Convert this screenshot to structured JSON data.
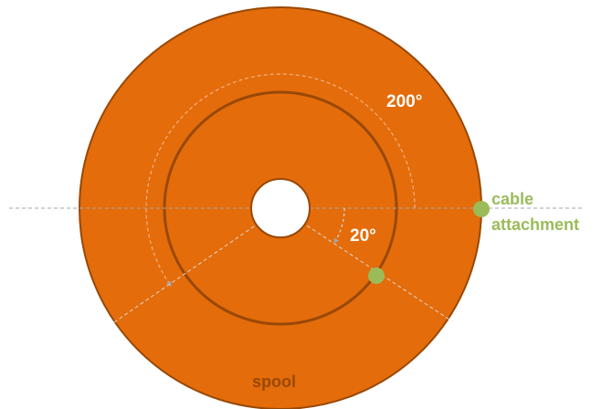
{
  "diagram": {
    "labels": {
      "outer_angle": "200°",
      "inner_angle": "20°",
      "cable_line1": "cable",
      "cable_line2": "attachment",
      "spool": "spool"
    },
    "colors": {
      "disk_fill": "#e46c0a",
      "disk_stroke": "#984807",
      "ring_stroke": "#984807",
      "hole_fill": "#ffffff",
      "point_fill": "#9bbb59",
      "guide_line": "#a6a6a6",
      "label_white": "#ffffff",
      "label_green": "#9bbb59",
      "label_brown": "#984807"
    },
    "angles_deg": {
      "outer_sweep": 200,
      "inner_sweep": 20
    }
  }
}
